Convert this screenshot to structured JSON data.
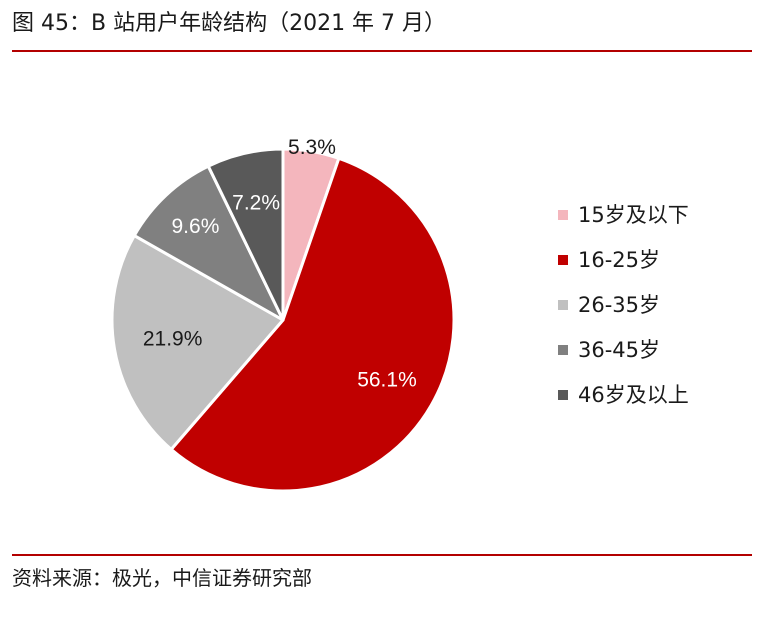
{
  "header": {
    "title": "图 45：B 站用户年龄结构（2021 年 7 月）"
  },
  "footer": {
    "source": "资料来源：极光，中信证券研究部"
  },
  "colors": {
    "rule": "#b30000",
    "slice_border": "#ffffff"
  },
  "chart_data": {
    "type": "pie",
    "title": "图 45：B 站用户年龄结构（2021 年 7 月）",
    "legend_position": "right",
    "start_angle_deg": 0,
    "direction": "clockwise",
    "slices": [
      {
        "name": "15岁及以下",
        "value": 5.3,
        "label": "5.3%",
        "color": "#f4b6bd",
        "label_color": "#1a1a1a"
      },
      {
        "name": "16-25岁",
        "value": 56.1,
        "label": "56.1%",
        "color": "#c00000",
        "label_color": "#ffffff"
      },
      {
        "name": "26-35岁",
        "value": 21.9,
        "label": "21.9%",
        "color": "#c0c0c0",
        "label_color": "#1a1a1a"
      },
      {
        "name": "36-45岁",
        "value": 9.6,
        "label": "9.6%",
        "color": "#808080",
        "label_color": "#ffffff"
      },
      {
        "name": "46岁及以上",
        "value": 7.2,
        "label": "7.2%",
        "color": "#595959",
        "label_color": "#ffffff"
      }
    ]
  }
}
